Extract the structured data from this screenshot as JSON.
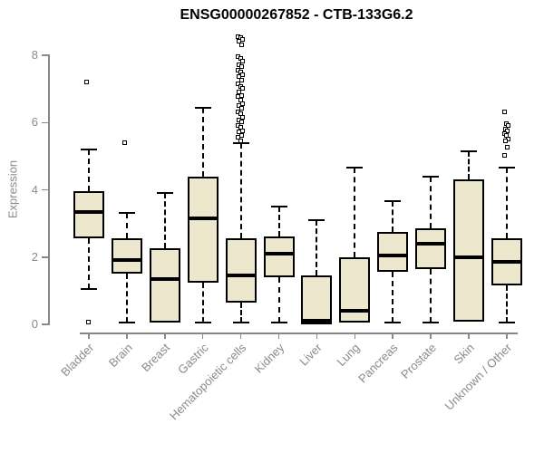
{
  "chart_data": {
    "type": "boxplot",
    "title": "ENSG00000267852 - CTB-133G6.2",
    "ylabel": "Expression",
    "xlabel": "",
    "ylim": [
      0,
      8.6
    ],
    "yticks": [
      0,
      2,
      4,
      6,
      8
    ],
    "grid": false,
    "legend": "none",
    "categories": [
      "Bladder",
      "Brain",
      "Breast",
      "Gastric",
      "Hematopoietic cells",
      "Kidney",
      "Liver",
      "Lung",
      "Pancreas",
      "Prostate",
      "Skin",
      "Unknown / Other"
    ],
    "series": [
      {
        "name": "Bladder",
        "low": 1.05,
        "q1": 2.55,
        "median": 3.35,
        "q3": 3.95,
        "high": 5.2,
        "outliers": [
          7.2,
          0.05
        ]
      },
      {
        "name": "Brain",
        "low": 0.05,
        "q1": 1.5,
        "median": 1.9,
        "q3": 2.55,
        "high": 3.3,
        "outliers": [
          5.4
        ]
      },
      {
        "name": "Breast",
        "low": 0.05,
        "q1": 0.05,
        "median": 1.35,
        "q3": 2.25,
        "high": 3.9,
        "outliers": []
      },
      {
        "name": "Gastric",
        "low": 0.05,
        "q1": 1.25,
        "median": 3.15,
        "q3": 4.4,
        "high": 6.45,
        "outliers": []
      },
      {
        "name": "Hematopoietic cells",
        "low": 0.05,
        "q1": 0.65,
        "median": 1.45,
        "q3": 2.55,
        "high": 5.4,
        "outliers": [
          8.55,
          8.5,
          8.45,
          8.4,
          8.3,
          7.95,
          7.9,
          7.8,
          7.7,
          7.65,
          7.55,
          7.5,
          7.4,
          7.35,
          7.25,
          7.15,
          7.05,
          7.0,
          6.9,
          6.8,
          6.75,
          6.65,
          6.55,
          6.5,
          6.4,
          6.3,
          6.25,
          6.15,
          6.05,
          6.0,
          5.9,
          5.85,
          5.75,
          5.7,
          5.6,
          5.55,
          5.45
        ]
      },
      {
        "name": "Kidney",
        "low": 0.05,
        "q1": 1.4,
        "median": 2.1,
        "q3": 2.6,
        "high": 3.5,
        "outliers": []
      },
      {
        "name": "Liver",
        "low": 0.0,
        "q1": 0.0,
        "median": 0.1,
        "q3": 1.45,
        "high": 3.1,
        "outliers": []
      },
      {
        "name": "Lung",
        "low": 0.05,
        "q1": 0.05,
        "median": 0.4,
        "q3": 2.0,
        "high": 4.65,
        "outliers": []
      },
      {
        "name": "Pancreas",
        "low": 0.05,
        "q1": 1.55,
        "median": 2.05,
        "q3": 2.75,
        "high": 3.65,
        "outliers": []
      },
      {
        "name": "Prostate",
        "low": 0.05,
        "q1": 1.65,
        "median": 2.4,
        "q3": 2.85,
        "high": 4.4,
        "outliers": []
      },
      {
        "name": "Skin",
        "low": 0.08,
        "q1": 0.08,
        "median": 2.0,
        "q3": 4.3,
        "high": 5.15,
        "outliers": []
      },
      {
        "name": "Unknown / Other",
        "low": 0.05,
        "q1": 1.15,
        "median": 1.85,
        "q3": 2.55,
        "high": 4.65,
        "outliers": [
          6.3,
          5.95,
          5.9,
          5.8,
          5.75,
          5.65,
          5.6,
          5.5,
          5.45,
          5.25,
          5.0
        ]
      }
    ],
    "colors": {
      "box_fill": "#ede8cd",
      "box_border": "#000000",
      "median": "#000000",
      "whisker": "#000000",
      "outlier_border": "#000000",
      "axis": "#888888",
      "tick_text": "#8a8a8a",
      "title_text": "#000000",
      "background": "#ffffff"
    }
  }
}
